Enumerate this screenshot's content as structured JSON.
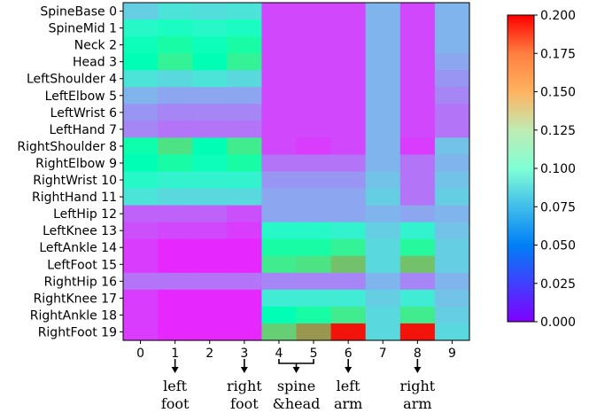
{
  "chart_data": {
    "type": "heatmap",
    "title": "",
    "xlabel": "",
    "ylabel": "",
    "x_tick_labels": [
      "0",
      "1",
      "2",
      "3",
      "4",
      "5",
      "6",
      "7",
      "8",
      "9"
    ],
    "y_tick_labels": [
      "SpineBase 0",
      "SpineMid 1",
      "Neck 2",
      "Head 3",
      "LeftShoulder 4",
      "LeftElbow 5",
      "LeftWrist 6",
      "LeftHand 7",
      "RightShoulder 8",
      "RightElbow 9",
      "RightWrist 10",
      "RightHand 11",
      "LeftHip 12",
      "LeftKnee 13",
      "LeftAnkle 14",
      "LeftFoot 15",
      "RightHip 16",
      "RightKnee 17",
      "RightAnkle 18",
      "RightFoot 19"
    ],
    "values": [
      [
        0.06,
        0.07,
        0.068,
        0.07,
        0.018,
        0.018,
        0.018,
        0.05,
        0.018,
        0.05
      ],
      [
        0.085,
        0.09,
        0.085,
        0.09,
        0.018,
        0.018,
        0.018,
        0.05,
        0.018,
        0.05
      ],
      [
        0.095,
        0.11,
        0.095,
        0.11,
        0.018,
        0.018,
        0.018,
        0.05,
        0.018,
        0.05
      ],
      [
        0.1,
        0.12,
        0.1,
        0.12,
        0.018,
        0.018,
        0.018,
        0.05,
        0.018,
        0.045
      ],
      [
        0.07,
        0.065,
        0.07,
        0.065,
        0.018,
        0.018,
        0.018,
        0.05,
        0.018,
        0.04
      ],
      [
        0.05,
        0.045,
        0.045,
        0.045,
        0.018,
        0.018,
        0.018,
        0.05,
        0.018,
        0.035
      ],
      [
        0.04,
        0.035,
        0.035,
        0.035,
        0.018,
        0.018,
        0.018,
        0.05,
        0.018,
        0.03
      ],
      [
        0.035,
        0.03,
        0.03,
        0.03,
        0.018,
        0.018,
        0.018,
        0.05,
        0.018,
        0.03
      ],
      [
        0.105,
        0.13,
        0.1,
        0.125,
        0.018,
        0.015,
        0.018,
        0.05,
        0.015,
        0.055
      ],
      [
        0.1,
        0.11,
        0.095,
        0.11,
        0.03,
        0.03,
        0.03,
        0.05,
        0.03,
        0.05
      ],
      [
        0.085,
        0.08,
        0.08,
        0.08,
        0.04,
        0.04,
        0.04,
        0.055,
        0.03,
        0.055
      ],
      [
        0.07,
        0.065,
        0.065,
        0.065,
        0.045,
        0.045,
        0.045,
        0.06,
        0.03,
        0.06
      ],
      [
        0.025,
        0.025,
        0.025,
        0.02,
        0.045,
        0.045,
        0.045,
        0.05,
        0.045,
        0.05
      ],
      [
        0.02,
        0.018,
        0.018,
        0.015,
        0.085,
        0.085,
        0.08,
        0.06,
        0.08,
        0.055
      ],
      [
        0.015,
        0.01,
        0.01,
        0.01,
        0.11,
        0.11,
        0.12,
        0.065,
        0.115,
        0.06
      ],
      [
        0.015,
        0.01,
        0.01,
        0.01,
        0.125,
        0.13,
        0.145,
        0.065,
        0.145,
        0.06
      ],
      [
        0.03,
        0.03,
        0.03,
        0.03,
        0.035,
        0.035,
        0.035,
        0.05,
        0.035,
        0.05
      ],
      [
        0.015,
        0.01,
        0.01,
        0.01,
        0.075,
        0.075,
        0.075,
        0.06,
        0.075,
        0.055
      ],
      [
        0.015,
        0.01,
        0.01,
        0.01,
        0.1,
        0.11,
        0.125,
        0.065,
        0.125,
        0.06
      ],
      [
        0.015,
        0.01,
        0.01,
        0.01,
        0.14,
        0.16,
        0.195,
        0.065,
        0.195,
        0.065
      ]
    ],
    "colorbar": {
      "min": 0.0,
      "max": 0.2,
      "ticks": [
        "0.000",
        "0.025",
        "0.050",
        "0.075",
        "0.100",
        "0.125",
        "0.150",
        "0.175",
        "0.200"
      ],
      "colormap": "rainbow"
    },
    "annotations": [
      {
        "label_lines": [
          "left",
          "foot"
        ],
        "columns": [
          1
        ]
      },
      {
        "label_lines": [
          "right",
          "foot"
        ],
        "columns": [
          3
        ]
      },
      {
        "label_lines": [
          "spine",
          "&head"
        ],
        "columns": [
          4,
          5
        ]
      },
      {
        "label_lines": [
          "left",
          "arm"
        ],
        "columns": [
          6
        ]
      },
      {
        "label_lines": [
          "right",
          "arm"
        ],
        "columns": [
          8
        ]
      }
    ]
  }
}
